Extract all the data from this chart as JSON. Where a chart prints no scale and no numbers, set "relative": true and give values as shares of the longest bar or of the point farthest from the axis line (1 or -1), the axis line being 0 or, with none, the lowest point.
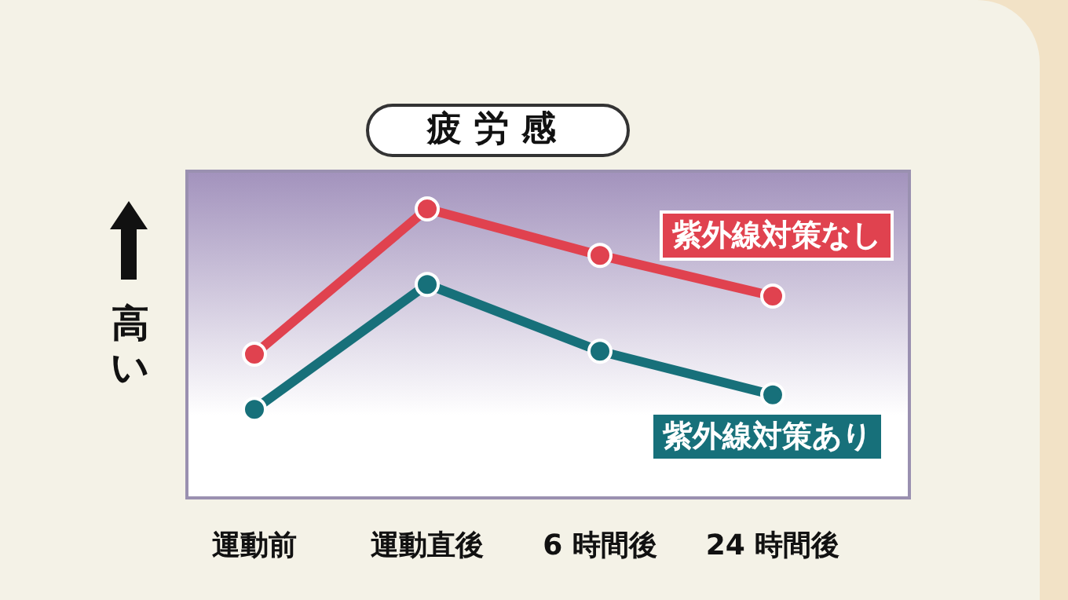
{
  "chart_data": {
    "type": "line",
    "title": "疲労感",
    "ylabel": "高い",
    "relative": true,
    "categories": [
      "運動前",
      "運動直後",
      "6 時間後",
      "24 時間後"
    ],
    "series": [
      {
        "name": "紫外線対策なし",
        "color": "#e0424f",
        "values": [
          0.5,
          1,
          0.84,
          0.7
        ]
      },
      {
        "name": "紫外線対策あり",
        "color": "#17707a",
        "values": [
          0.31,
          0.74,
          0.51,
          0.36
        ]
      }
    ],
    "marker": "circle",
    "line_style": "solid",
    "grid": false,
    "legend": false
  }
}
